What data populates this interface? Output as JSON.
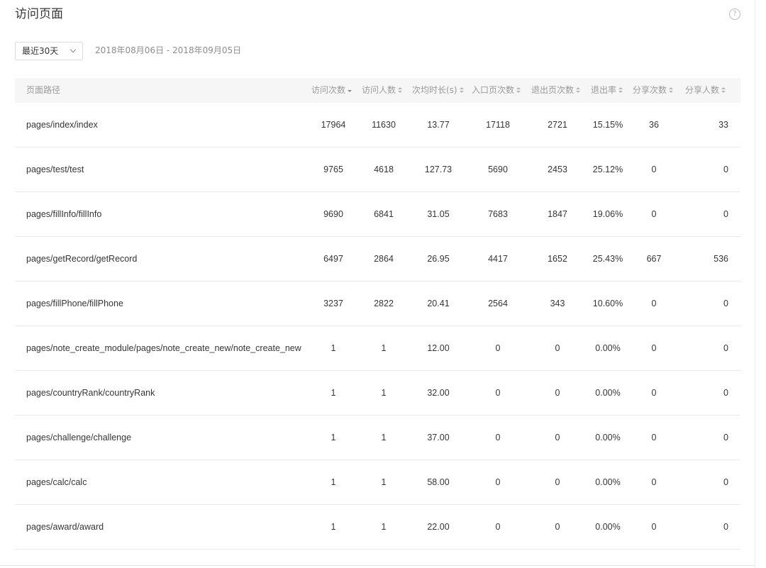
{
  "header": {
    "title": "访问页面",
    "help_icon": "?"
  },
  "filter": {
    "range_label": "最近30天",
    "date_range": "2018年08月06日 - 2018年09月05日"
  },
  "table": {
    "columns": [
      {
        "key": "path",
        "label": "页面路径"
      },
      {
        "key": "visits",
        "label": "访问次数",
        "sort": "desc"
      },
      {
        "key": "visitors",
        "label": "访问人数",
        "sort": "both"
      },
      {
        "key": "avg_duration",
        "label": "次均时长(s)",
        "sort": "both"
      },
      {
        "key": "entry",
        "label": "入口页次数",
        "sort": "both"
      },
      {
        "key": "exit",
        "label": "退出页次数",
        "sort": "both"
      },
      {
        "key": "exit_rate",
        "label": "退出率",
        "sort": "both"
      },
      {
        "key": "shares",
        "label": "分享次数",
        "sort": "both"
      },
      {
        "key": "sharers",
        "label": "分享人数",
        "sort": "both"
      }
    ],
    "rows": [
      {
        "path": "pages/index/index",
        "visits": "17964",
        "visitors": "11630",
        "avg_duration": "13.77",
        "entry": "17118",
        "exit": "2721",
        "exit_rate": "15.15%",
        "shares": "36",
        "sharers": "33"
      },
      {
        "path": "pages/test/test",
        "visits": "9765",
        "visitors": "4618",
        "avg_duration": "127.73",
        "entry": "5690",
        "exit": "2453",
        "exit_rate": "25.12%",
        "shares": "0",
        "sharers": "0"
      },
      {
        "path": "pages/fillInfo/fillInfo",
        "visits": "9690",
        "visitors": "6841",
        "avg_duration": "31.05",
        "entry": "7683",
        "exit": "1847",
        "exit_rate": "19.06%",
        "shares": "0",
        "sharers": "0"
      },
      {
        "path": "pages/getRecord/getRecord",
        "visits": "6497",
        "visitors": "2864",
        "avg_duration": "26.95",
        "entry": "4417",
        "exit": "1652",
        "exit_rate": "25.43%",
        "shares": "667",
        "sharers": "536"
      },
      {
        "path": "pages/fillPhone/fillPhone",
        "visits": "3237",
        "visitors": "2822",
        "avg_duration": "20.41",
        "entry": "2564",
        "exit": "343",
        "exit_rate": "10.60%",
        "shares": "0",
        "sharers": "0"
      },
      {
        "path": "pages/note_create_module/pages/note_create_new/note_create_new",
        "visits": "1",
        "visitors": "1",
        "avg_duration": "12.00",
        "entry": "0",
        "exit": "0",
        "exit_rate": "0.00%",
        "shares": "0",
        "sharers": "0"
      },
      {
        "path": "pages/countryRank/countryRank",
        "visits": "1",
        "visitors": "1",
        "avg_duration": "32.00",
        "entry": "0",
        "exit": "0",
        "exit_rate": "0.00%",
        "shares": "0",
        "sharers": "0"
      },
      {
        "path": "pages/challenge/challenge",
        "visits": "1",
        "visitors": "1",
        "avg_duration": "37.00",
        "entry": "0",
        "exit": "0",
        "exit_rate": "0.00%",
        "shares": "0",
        "sharers": "0"
      },
      {
        "path": "pages/calc/calc",
        "visits": "1",
        "visitors": "1",
        "avg_duration": "58.00",
        "entry": "0",
        "exit": "0",
        "exit_rate": "0.00%",
        "shares": "0",
        "sharers": "0"
      },
      {
        "path": "pages/award/award",
        "visits": "1",
        "visitors": "1",
        "avg_duration": "22.00",
        "entry": "0",
        "exit": "0",
        "exit_rate": "0.00%",
        "shares": "0",
        "sharers": "0"
      }
    ]
  }
}
